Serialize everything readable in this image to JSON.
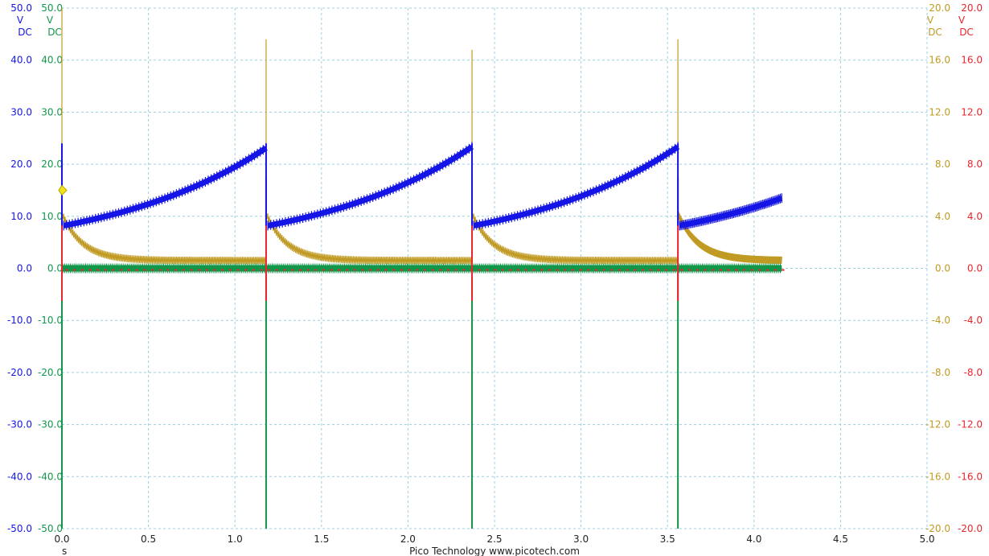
{
  "footer": {
    "x_unit": "s",
    "brand": "Pico Technology   www.picotech.com"
  },
  "colors": {
    "grid": "#9ccfe0",
    "blue": "#1515e6",
    "green": "#12964a",
    "gold": "#c09a22",
    "red": "#e8252d",
    "marker": "#f2e21d"
  },
  "chart_data": {
    "type": "line",
    "title": "",
    "x": {
      "label": "s",
      "min": 0,
      "max": 5,
      "ticks": [
        "0.0",
        "0.5",
        "1.0",
        "1.5",
        "2.0",
        "2.5",
        "3.0",
        "3.5",
        "4.0",
        "4.5",
        "5.0"
      ]
    },
    "axes": [
      {
        "id": "A",
        "side": "left",
        "unit_lines": [
          "V",
          "DC"
        ],
        "color": "#1515e6",
        "min": -50,
        "max": 50,
        "ticks": [
          "50.0",
          "40.0",
          "30.0",
          "20.0",
          "10.0",
          "0.0",
          "-10.0",
          "-20.0",
          "-30.0",
          "-40.0",
          "-50.0"
        ]
      },
      {
        "id": "B",
        "side": "left",
        "unit_lines": [
          "V",
          "DC"
        ],
        "color": "#12964a",
        "min": -50,
        "max": 50,
        "ticks": [
          "50.0",
          "40.0",
          "30.0",
          "20.0",
          "10.0",
          "0.0",
          "-10.0",
          "-20.0",
          "-30.0",
          "-40.0",
          "-50.0"
        ]
      },
      {
        "id": "C",
        "side": "right",
        "unit_lines": [
          "V",
          "DC"
        ],
        "color": "#c09a22",
        "min": -20,
        "max": 20,
        "ticks": [
          "20.0",
          "16.0",
          "12.0",
          "8.0",
          "4.0",
          "0.0",
          "-4.0",
          "-8.0",
          "-12.0",
          "-16.0",
          "-20.0"
        ]
      },
      {
        "id": "D",
        "side": "right",
        "unit_lines": [
          "V",
          "DC"
        ],
        "color": "#e8252d",
        "min": -20,
        "max": 20,
        "ticks": [
          "20.0",
          "16.0",
          "12.0",
          "8.0",
          "4.0",
          "0.0",
          "-4.0",
          "-8.0",
          "-12.0",
          "-16.0",
          "-20.0"
        ]
      }
    ],
    "grid": true,
    "data_end_s": 4.16,
    "series": [
      {
        "axis": "A",
        "color": "#1515e6",
        "desc_points": [
          [
            0.0,
            23
          ],
          [
            0.01,
            8.2
          ],
          [
            0.5,
            12.5
          ],
          [
            1.0,
            17.8
          ],
          [
            1.18,
            21.5
          ],
          [
            1.19,
            8.2
          ],
          [
            1.7,
            12.5
          ],
          [
            2.2,
            17.8
          ],
          [
            2.37,
            21.5
          ],
          [
            2.38,
            8.2
          ],
          [
            2.9,
            12.5
          ],
          [
            3.4,
            17.8
          ],
          [
            3.56,
            21.5
          ],
          [
            3.57,
            8.2
          ],
          [
            4.16,
            13.3
          ]
        ]
      },
      {
        "axis": "B",
        "color": "#12964a",
        "level": 0,
        "spikes_s": [
          0.0,
          1.18,
          2.37,
          3.56
        ],
        "spike_min": -50
      },
      {
        "axis": "C",
        "color": "#c09a22",
        "level_after": 0.6,
        "decay_from": 4.2,
        "spikes_s": [
          0.0,
          1.18,
          2.37,
          3.56
        ],
        "spike_peaks": [
          20,
          17.6,
          16.8,
          17.6
        ]
      },
      {
        "axis": "D",
        "color": "#e8252d",
        "level": 0,
        "spikes_s": [
          0.0,
          1.18,
          2.37,
          3.56
        ],
        "spike_max": 7.0,
        "spike_min": -2.5
      }
    ],
    "trigger_marker": {
      "axis": "A",
      "value": 15
    }
  }
}
